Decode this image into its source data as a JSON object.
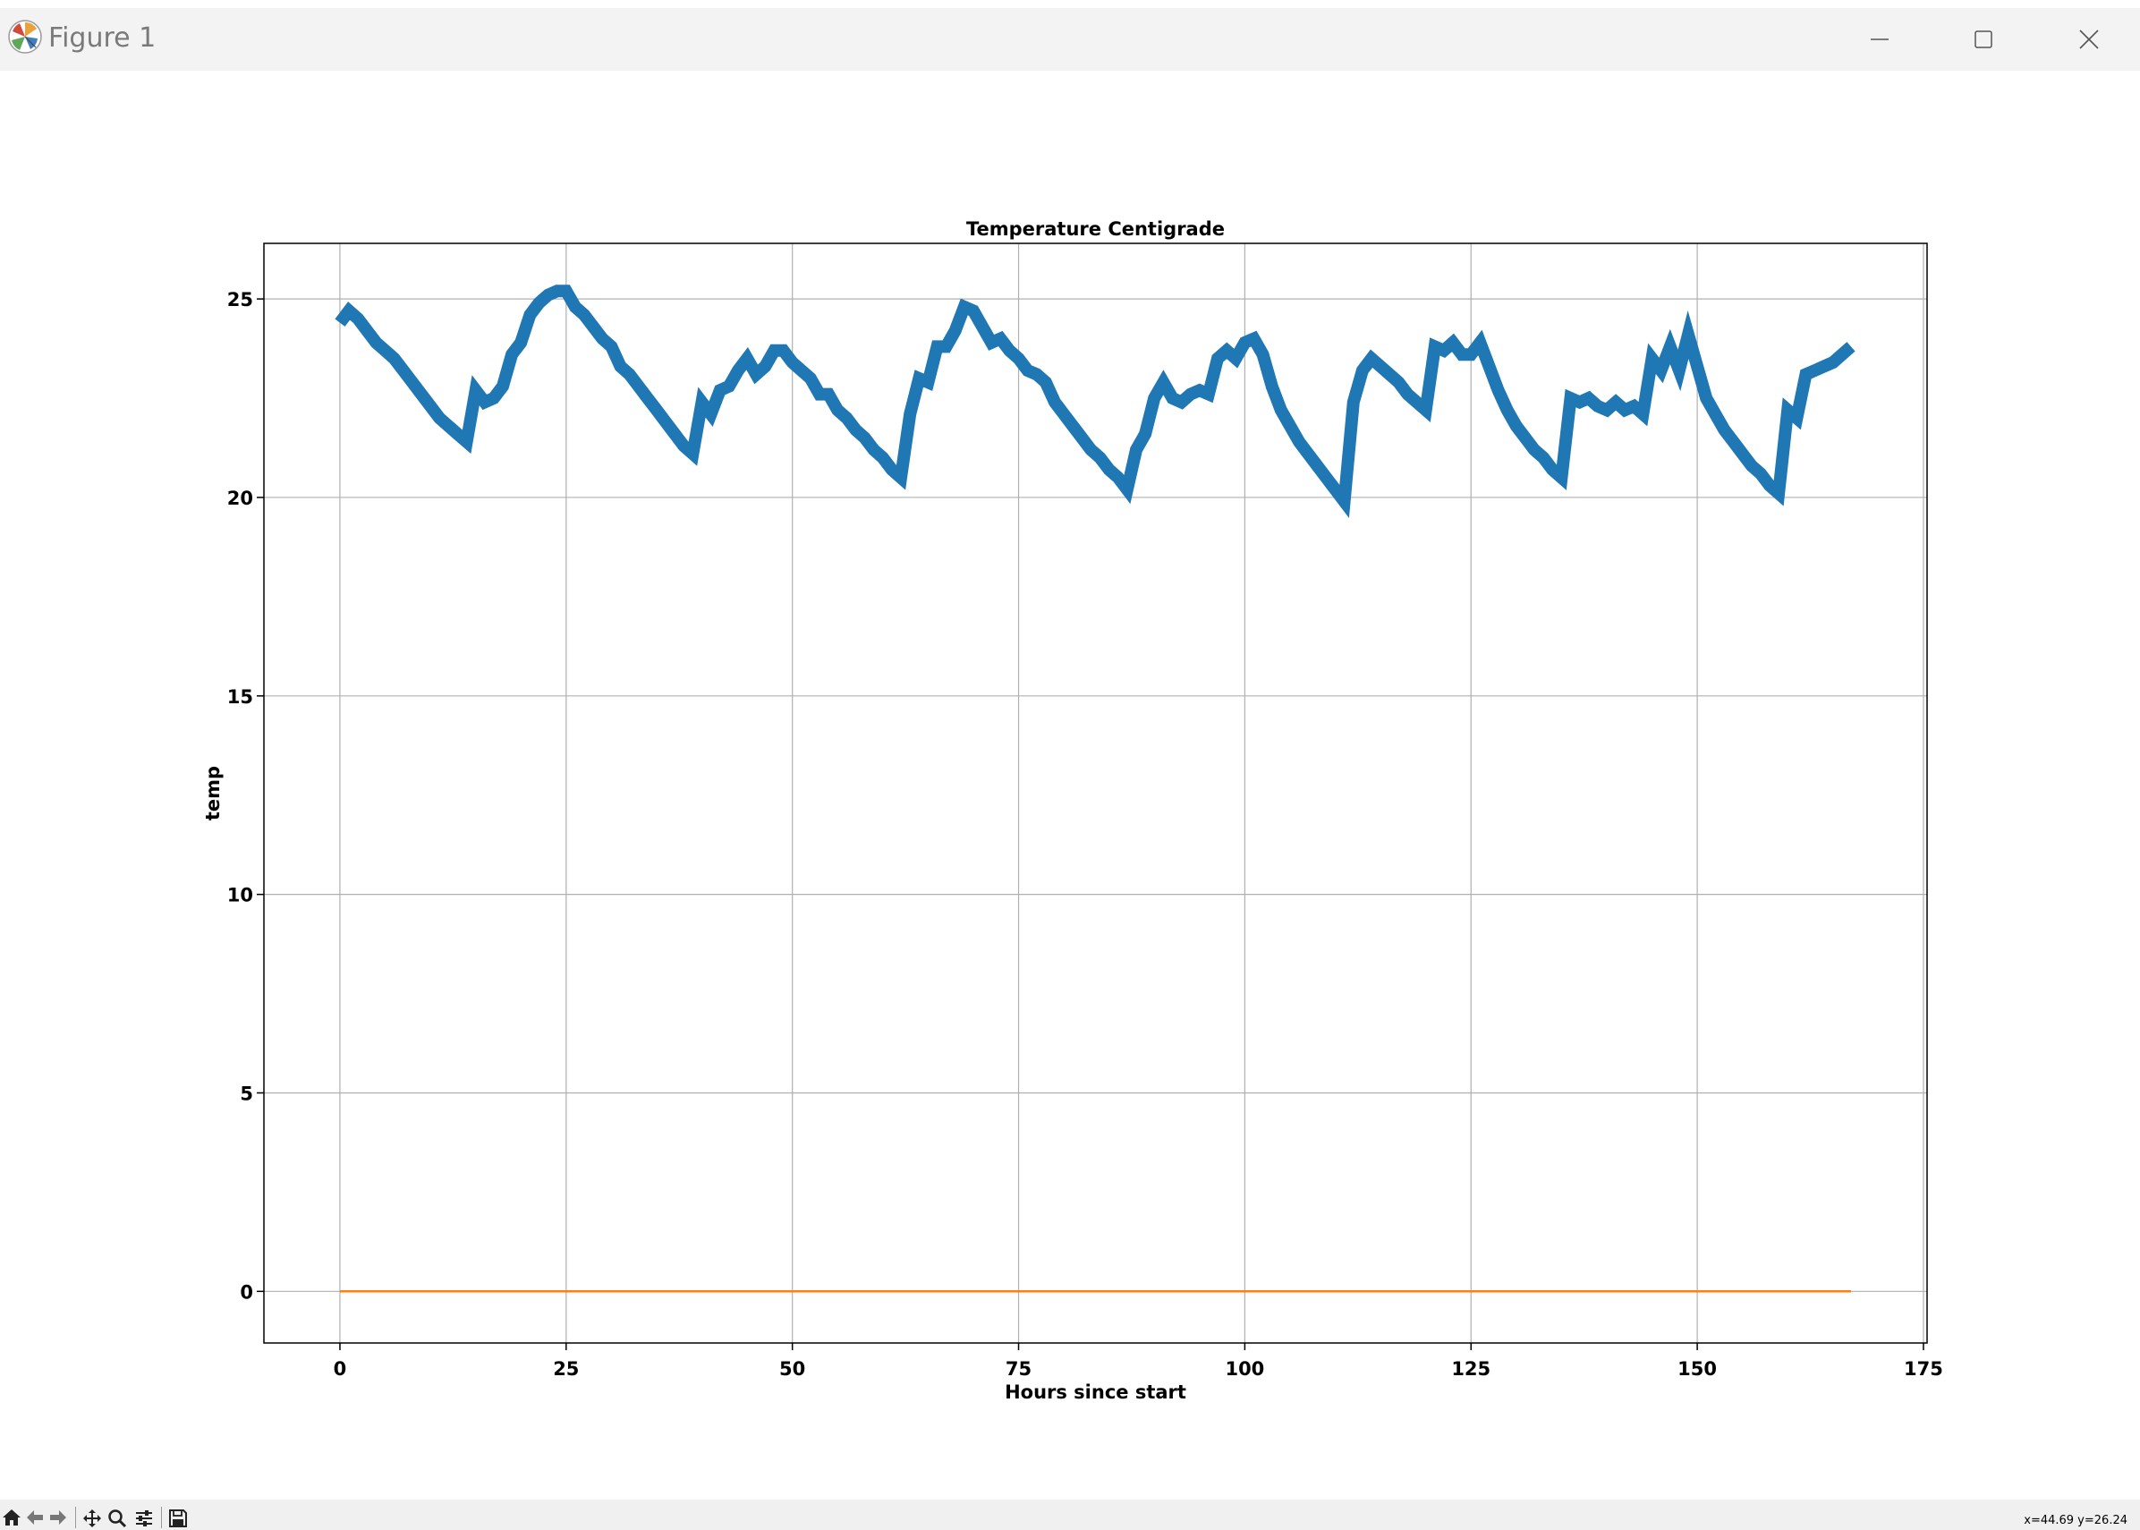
{
  "window": {
    "title": "Figure 1",
    "icon": "matplotlib-logo-icon"
  },
  "toolbar": {
    "tools": [
      "home-icon",
      "back-arrow-icon",
      "forward-arrow-icon",
      "pan-icon",
      "zoom-icon",
      "configure-subplots-icon",
      "save-icon"
    ],
    "coords": "x=44.69 y=26.24"
  },
  "chart_data": {
    "type": "line",
    "title": "Temperature Centigrade",
    "xlabel": "Hours since start",
    "ylabel": "temp",
    "xlim": [
      -8.4,
      175.4
    ],
    "ylim": [
      -1.3,
      26.4
    ],
    "xticks": [
      0,
      25,
      50,
      75,
      100,
      125,
      150,
      175
    ],
    "yticks": [
      0,
      5,
      10,
      15,
      20,
      25
    ],
    "grid": true,
    "series": [
      {
        "color": "#1f77b4",
        "linewidth": "thick",
        "x": [
          0,
          1,
          2,
          3,
          4,
          5,
          6,
          7,
          8,
          9,
          10,
          11,
          12,
          13,
          14,
          15,
          16,
          17,
          18,
          19,
          20,
          21,
          22,
          23,
          24,
          25,
          26,
          27,
          28,
          29,
          30,
          31,
          32,
          33,
          34,
          35,
          36,
          37,
          38,
          39,
          40,
          41,
          42,
          43,
          44,
          45,
          46,
          47,
          48,
          49,
          50,
          51,
          52,
          53,
          54,
          55,
          56,
          57,
          58,
          59,
          60,
          61,
          62,
          63,
          64,
          65,
          66,
          67,
          68,
          69,
          70,
          71,
          72,
          73,
          74,
          75,
          76,
          77,
          78,
          79,
          80,
          81,
          82,
          83,
          84,
          85,
          86,
          87,
          88,
          89,
          90,
          91,
          92,
          93,
          94,
          95,
          96,
          97,
          98,
          99,
          100,
          101,
          102,
          103,
          104,
          105,
          106,
          107,
          108,
          109,
          110,
          111,
          112,
          113,
          114,
          115,
          116,
          117,
          118,
          119,
          120,
          121,
          122,
          123,
          124,
          125,
          126,
          127,
          128,
          129,
          130,
          131,
          132,
          133,
          134,
          135,
          136,
          137,
          138,
          139,
          140,
          141,
          142,
          143,
          144,
          145,
          146,
          147,
          148,
          149,
          150,
          151,
          152,
          153,
          154,
          155,
          156,
          157,
          158,
          159,
          160,
          161,
          162,
          163,
          164,
          165,
          166,
          167
        ],
        "y": [
          24.4,
          24.7,
          24.5,
          24.2,
          23.9,
          23.7,
          23.5,
          23.2,
          22.9,
          22.6,
          22.3,
          22.0,
          21.8,
          21.6,
          21.4,
          22.7,
          22.4,
          22.5,
          22.8,
          23.6,
          23.9,
          24.6,
          24.9,
          25.1,
          25.2,
          25.2,
          24.8,
          24.6,
          24.3,
          24.0,
          23.8,
          23.3,
          23.1,
          22.8,
          22.5,
          22.2,
          21.9,
          21.6,
          21.3,
          21.1,
          22.4,
          22.1,
          22.7,
          22.8,
          23.2,
          23.5,
          23.1,
          23.3,
          23.7,
          23.7,
          23.4,
          23.2,
          23.0,
          22.6,
          22.6,
          22.2,
          22.0,
          21.7,
          21.5,
          21.2,
          21.0,
          20.7,
          20.5,
          22.1,
          23.0,
          22.9,
          23.8,
          23.8,
          24.2,
          24.8,
          24.7,
          24.3,
          23.9,
          24.0,
          23.7,
          23.5,
          23.2,
          23.1,
          22.9,
          22.4,
          22.1,
          21.8,
          21.5,
          21.2,
          21.0,
          20.7,
          20.5,
          20.2,
          21.2,
          21.6,
          22.5,
          22.9,
          22.5,
          22.4,
          22.6,
          22.7,
          22.6,
          23.5,
          23.7,
          23.5,
          23.9,
          24.0,
          23.6,
          22.8,
          22.2,
          21.8,
          21.4,
          21.1,
          20.8,
          20.5,
          20.2,
          19.9,
          22.4,
          23.2,
          23.5,
          23.3,
          23.1,
          22.9,
          22.6,
          22.4,
          22.2,
          23.8,
          23.7,
          23.9,
          23.6,
          23.6,
          23.9,
          23.3,
          22.7,
          22.2,
          21.8,
          21.5,
          21.2,
          21.0,
          20.7,
          20.5,
          22.5,
          22.4,
          22.5,
          22.3,
          22.2,
          22.4,
          22.2,
          22.3,
          22.1,
          23.5,
          23.2,
          23.8,
          23.2,
          24.1,
          23.3,
          22.5,
          22.1,
          21.7,
          21.4,
          21.1,
          20.8,
          20.6,
          20.3,
          20.1,
          22.2,
          22.0,
          23.1,
          23.2,
          23.3,
          23.4,
          23.6,
          23.8
        ]
      },
      {
        "color": "#ff7f0e",
        "linewidth": "thin",
        "x": [
          0,
          167
        ],
        "y": [
          0,
          0
        ]
      }
    ]
  }
}
